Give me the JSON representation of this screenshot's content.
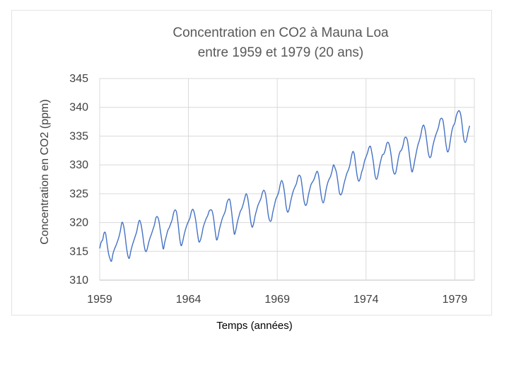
{
  "chart_data": {
    "type": "line",
    "title": [
      "Concentration en CO2 à Mauna Loa",
      "entre 1959 et 1979 (20 ans)"
    ],
    "ylabel": "Concentration en CO2 (ppm)",
    "xlabel": "Temps (années)",
    "xlim": [
      1959,
      1980.1
    ],
    "ylim": [
      310,
      345
    ],
    "x_ticks": [
      1959,
      1964,
      1969,
      1974,
      1979
    ],
    "y_ticks": [
      310,
      315,
      320,
      325,
      330,
      335,
      340,
      345
    ],
    "grid": true,
    "color": "#4472c4",
    "series": [
      {
        "x_start": 1959.0,
        "x_step": 0.0833333,
        "values": [
          315.5,
          316.6,
          317.0,
          318.2,
          318.1,
          316.3,
          314.6,
          313.7,
          313.3,
          314.6,
          315.4,
          316.0,
          316.7,
          317.5,
          318.6,
          320.0,
          319.6,
          318.1,
          315.9,
          314.3,
          313.8,
          315.0,
          316.0,
          316.8,
          317.6,
          318.4,
          319.7,
          320.4,
          319.6,
          318.0,
          316.1,
          315.0,
          315.3,
          316.4,
          317.3,
          318.0,
          318.8,
          319.6,
          320.8,
          321.0,
          320.3,
          318.6,
          316.9,
          315.4,
          316.6,
          317.6,
          318.6,
          319.1,
          319.8,
          320.5,
          321.7,
          322.2,
          321.7,
          319.8,
          317.4,
          316.0,
          316.6,
          317.8,
          318.8,
          319.6,
          320.2,
          320.8,
          321.9,
          322.3,
          321.6,
          320.2,
          318.3,
          316.7,
          316.9,
          317.9,
          319.2,
          320.0,
          320.7,
          321.2,
          322.0,
          322.2,
          322.0,
          320.7,
          318.6,
          317.0,
          317.6,
          318.9,
          319.9,
          320.8,
          321.4,
          322.1,
          323.4,
          324.0,
          323.9,
          322.2,
          319.9,
          318.0,
          318.7,
          320.0,
          321.0,
          321.9,
          322.4,
          323.2,
          324.2,
          325.0,
          324.3,
          322.5,
          320.3,
          319.2,
          319.8,
          321.1,
          322.1,
          323.0,
          323.6,
          324.2,
          325.2,
          325.6,
          325.0,
          323.3,
          321.2,
          320.3,
          320.4,
          321.8,
          322.9,
          324.0,
          324.6,
          325.3,
          326.6,
          327.3,
          326.6,
          325.0,
          322.8,
          321.8,
          322.3,
          323.6,
          324.7,
          325.6,
          326.2,
          326.8,
          327.9,
          328.2,
          327.7,
          325.9,
          323.9,
          323.0,
          323.3,
          324.7,
          325.8,
          326.7,
          327.1,
          327.6,
          328.4,
          328.9,
          328.1,
          326.0,
          324.2,
          323.4,
          324.2,
          325.7,
          326.8,
          327.5,
          328.0,
          328.9,
          330.0,
          329.5,
          328.7,
          327.0,
          325.2,
          324.8,
          325.4,
          326.6,
          327.6,
          328.5,
          329.1,
          329.9,
          331.3,
          332.3,
          331.9,
          330.0,
          328.1,
          327.2,
          327.6,
          328.7,
          329.5,
          330.7,
          331.4,
          332.1,
          333.0,
          333.2,
          332.0,
          330.4,
          328.3,
          327.5,
          328.2,
          329.6,
          330.8,
          331.7,
          331.9,
          332.6,
          333.7,
          333.9,
          333.2,
          331.6,
          329.5,
          328.5,
          328.6,
          329.9,
          331.4,
          332.3,
          332.6,
          333.4,
          334.6,
          334.8,
          334.2,
          332.4,
          330.3,
          328.8,
          329.5,
          330.9,
          332.2,
          333.4,
          334.2,
          335.2,
          336.5,
          336.9,
          336.0,
          334.2,
          332.2,
          331.3,
          331.6,
          333.1,
          334.2,
          335.1,
          335.8,
          336.6,
          337.8,
          338.1,
          337.7,
          335.8,
          333.6,
          332.3,
          332.7,
          334.3,
          335.9,
          336.8,
          337.3,
          338.5,
          339.2,
          339.4,
          338.7,
          336.8,
          334.6,
          333.9,
          334.5,
          335.8,
          336.8
        ]
      }
    ]
  }
}
